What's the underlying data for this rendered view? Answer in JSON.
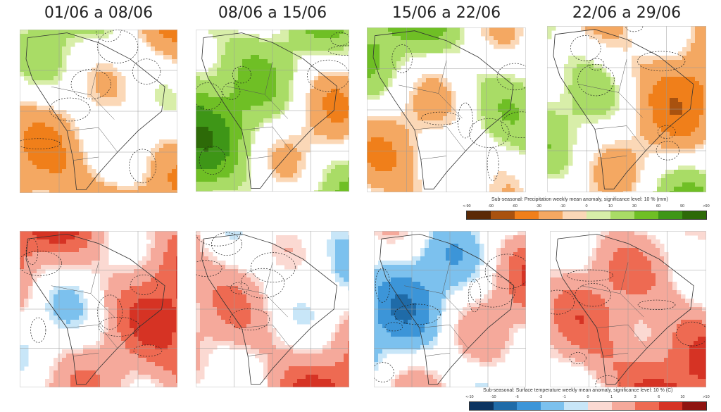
{
  "weeks": [
    "01/06 a 08/06",
    "08/06 a 15/06",
    "15/06 a 22/06",
    "22/06 a 29/06"
  ],
  "precipitation": {
    "title": "Sub-seasonal: Precipitation weekly mean anomaly, significance level: 10 % (mm)",
    "ticks": [
      "<-90",
      "-90",
      "-60",
      "-30",
      "-10",
      "0",
      "10",
      "30",
      "60",
      "90",
      ">90"
    ],
    "colors": [
      "#5b2a06",
      "#a9520f",
      "#f07f1a",
      "#f4a862",
      "#fbd8b7",
      "#d8eea9",
      "#a9dc66",
      "#6fbf25",
      "#3e9617",
      "#2d6a08"
    ]
  },
  "temperature": {
    "title": "Sub-seasonal: Surface temperature weekly mean anomaly, significance level: 10 % (C)",
    "ticks": [
      "<-10",
      "-10",
      "-6",
      "-3",
      "-1",
      "0",
      "1",
      "3",
      "6",
      "10",
      ">10"
    ],
    "colors": [
      "#0b3461",
      "#1f6ba8",
      "#3c95d8",
      "#7cc1ee",
      "#c8e6f8",
      "#fbd9d2",
      "#f5a99b",
      "#ee6a52",
      "#d63324",
      "#8f1410"
    ]
  },
  "maps": [
    {
      "name": "precip-week-1",
      "variable": "precipitation",
      "week": "01/06 a 08/06",
      "bias": -0.25
    },
    {
      "name": "precip-week-2",
      "variable": "precipitation",
      "week": "08/06 a 15/06",
      "bias": 0.35
    },
    {
      "name": "precip-week-3",
      "variable": "precipitation",
      "week": "15/06 a 22/06",
      "bias": 0.1
    },
    {
      "name": "precip-week-4",
      "variable": "precipitation",
      "week": "22/06 a 29/06",
      "bias": 0.0
    },
    {
      "name": "temp-week-1",
      "variable": "temperature",
      "week": "01/06 a 08/06",
      "bias": 0.55
    },
    {
      "name": "temp-week-2",
      "variable": "temperature",
      "week": "08/06 a 15/06",
      "bias": 0.25
    },
    {
      "name": "temp-week-3",
      "variable": "temperature",
      "week": "15/06 a 22/06",
      "bias": 0.05
    },
    {
      "name": "temp-week-4",
      "variable": "temperature",
      "week": "22/06 a 29/06",
      "bias": 0.35
    }
  ]
}
